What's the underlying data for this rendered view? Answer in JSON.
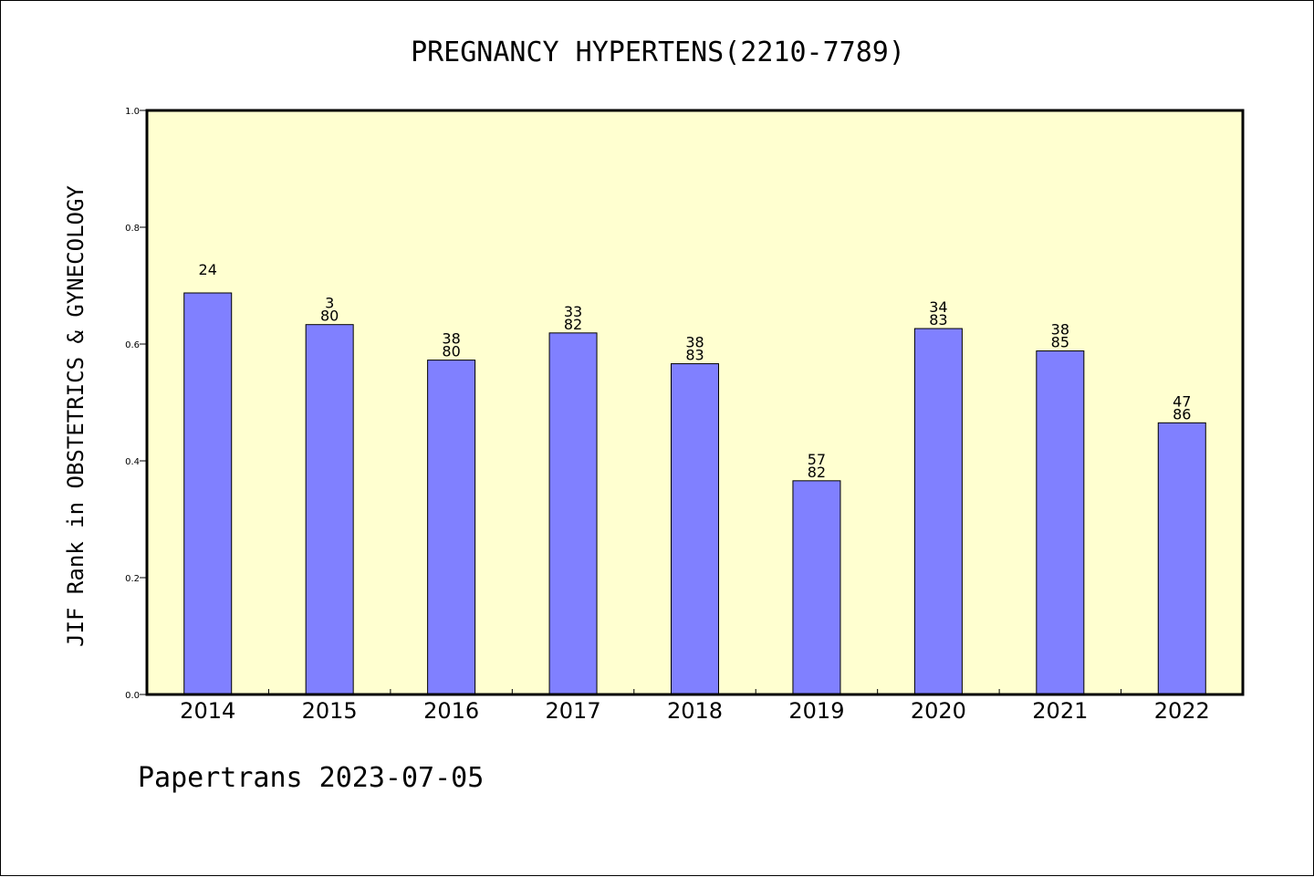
{
  "footer": {
    "text": "Papertrans 2023-07-05"
  },
  "chart_data": {
    "type": "bar",
    "title": "PREGNANCY HYPERTENS(2210-7789)",
    "xlabel": "",
    "ylabel": "JIF Rank in OBSTETRICS & GYNECOLOGY",
    "ylim": [
      0.0,
      1.0
    ],
    "yticks": [
      "0.0",
      "0.2",
      "0.4",
      "0.6",
      "0.8",
      "1.0"
    ],
    "categories": [
      "2014",
      "2015",
      "2016",
      "2017",
      "2018",
      "2019",
      "2020",
      "2021",
      "2022"
    ],
    "values": [
      0.6875,
      0.6333,
      0.5725,
      0.619,
      0.5663,
      0.3659,
      0.6265,
      0.5882,
      0.4651
    ],
    "labels": [
      [
        "24"
      ],
      [
        "3",
        "80"
      ],
      [
        "38",
        "80"
      ],
      [
        "33",
        "82"
      ],
      [
        "38",
        "83"
      ],
      [
        "57",
        "82"
      ],
      [
        "34",
        "83"
      ],
      [
        "38",
        "85"
      ],
      [
        "47",
        "86"
      ]
    ],
    "grid": false,
    "colors": {
      "plot_background": "#ffffd0",
      "bar_fill": "#8080ff",
      "bar_stroke": "#000000",
      "axis": "#000000"
    }
  }
}
